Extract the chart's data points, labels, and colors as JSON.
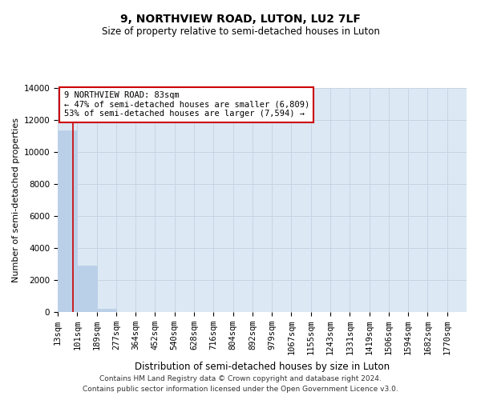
{
  "title": "9, NORTHVIEW ROAD, LUTON, LU2 7LF",
  "subtitle": "Size of property relative to semi-detached houses in Luton",
  "xlabel": "Distribution of semi-detached houses by size in Luton",
  "ylabel": "Number of semi-detached properties",
  "property_size": 83,
  "pct_smaller": 47,
  "pct_larger": 53,
  "n_smaller": 6809,
  "n_larger": 7594,
  "bin_edges": [
    13,
    101,
    189,
    277,
    364,
    452,
    540,
    628,
    716,
    804,
    892,
    979,
    1067,
    1155,
    1243,
    1331,
    1419,
    1506,
    1594,
    1682,
    1770
  ],
  "bin_labels": [
    "13sqm",
    "101sqm",
    "189sqm",
    "277sqm",
    "364sqm",
    "452sqm",
    "540sqm",
    "628sqm",
    "716sqm",
    "804sqm",
    "892sqm",
    "979sqm",
    "1067sqm",
    "1155sqm",
    "1243sqm",
    "1331sqm",
    "1419sqm",
    "1506sqm",
    "1594sqm",
    "1682sqm",
    "1770sqm"
  ],
  "bar_values": [
    11350,
    2900,
    180,
    0,
    0,
    0,
    0,
    0,
    0,
    0,
    0,
    0,
    0,
    0,
    0,
    0,
    0,
    0,
    0,
    0
  ],
  "bar_color": "#bad0e8",
  "bar_edge_color": "#bad0e8",
  "grid_color": "#c8d4e4",
  "background_color": "#dce8f4",
  "vline_color": "#cc0000",
  "annotation_box_edgecolor": "#cc0000",
  "ylim": [
    0,
    14000
  ],
  "yticks": [
    0,
    2000,
    4000,
    6000,
    8000,
    10000,
    12000,
    14000
  ],
  "title_fontsize": 10,
  "subtitle_fontsize": 8.5,
  "ylabel_fontsize": 8,
  "xlabel_fontsize": 8.5,
  "tick_fontsize": 7.5,
  "ann_fontsize": 7.5,
  "footer_line1": "Contains HM Land Registry data © Crown copyright and database right 2024.",
  "footer_line2": "Contains public sector information licensed under the Open Government Licence v3.0."
}
